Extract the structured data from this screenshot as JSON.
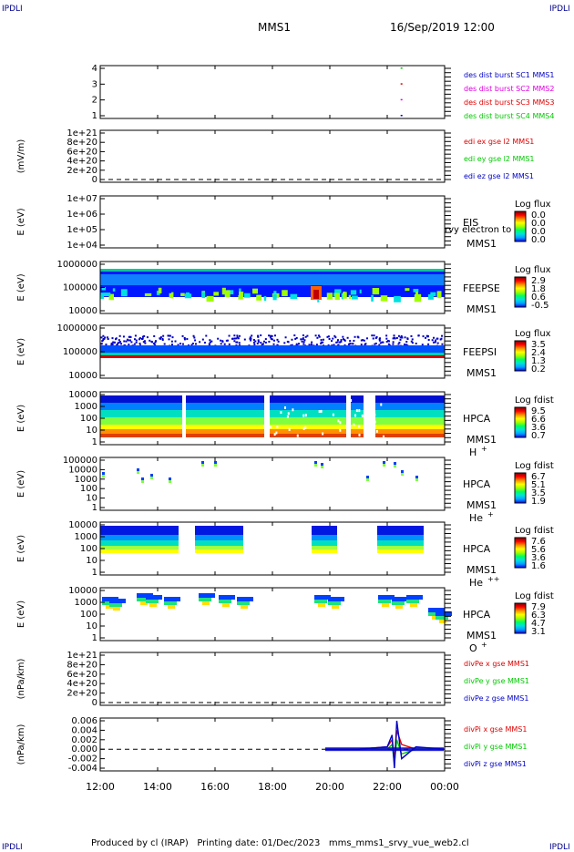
{
  "page": {
    "corner_label": "IPDLI",
    "spacecraft": "MMS1",
    "datetime": "16/Sep/2019 12:00",
    "footer": "Produced by cl (IRAP)   Printing date: 01/Dec/2023   mms_mms1_srvy_vue_web2.cl"
  },
  "time_axis": {
    "ticks": [
      "12:00",
      "14:00",
      "16:00",
      "18:00",
      "20:00",
      "22:00",
      "00:00"
    ]
  },
  "colors": {
    "blue": "#0000c8",
    "magenta": "#e000e0",
    "red": "#e00000",
    "green": "#00c800",
    "rainbow": [
      "#0000ff",
      "#00a0ff",
      "#00e0e0",
      "#00ff60",
      "#a0ff00",
      "#ffff00",
      "#ff9000",
      "#ff0000",
      "#800000"
    ]
  },
  "panels": [
    {
      "id": "des-dist-burst",
      "ylabel": "",
      "yticks": [
        "4",
        "3",
        "2",
        "1"
      ],
      "legend": [
        {
          "text": "des dist burst SC1 MMS1",
          "color": "#0000c8"
        },
        {
          "text": "des dist burst SC2 MMS2",
          "color": "#e000e0"
        },
        {
          "text": "des dist burst SC3 MMS3",
          "color": "#e00000"
        },
        {
          "text": "des dist burst SC4 MMS4",
          "color": "#00c800"
        }
      ]
    },
    {
      "id": "edi-e",
      "ylabel": "(mV/m)",
      "yticks": [
        "1e+21",
        "8e+20",
        "6e+20",
        "4e+20",
        "2e+20",
        "0"
      ],
      "legend": [
        {
          "text": "edi ex gse l2 MMS1",
          "color": "#e00000"
        },
        {
          "text": "edi ey gse l2 MMS1",
          "color": "#00c800"
        },
        {
          "text": "edi ez gse l2 MMS1",
          "color": "#0000c8"
        }
      ]
    },
    {
      "id": "eis",
      "ylabel": "E (eV)",
      "yticks": [
        "1e+07",
        "1e+06",
        "1e+05",
        "1e+04"
      ],
      "instrument": "EIS",
      "species": "",
      "spacecraft": "MMS1",
      "extra": "rvy electron to",
      "cbar_title": "Log flux",
      "cbar_ticks": [
        "0.0",
        "0.0",
        "0.0",
        "0.0"
      ]
    },
    {
      "id": "feepse",
      "ylabel": "E (eV)",
      "yticks": [
        "1000000",
        "100000",
        "10000"
      ],
      "instrument": "FEEPSE",
      "species": "",
      "spacecraft": "MMS1",
      "cbar_title": "Log flux",
      "cbar_ticks": [
        "2.9",
        "1.8",
        "0.6",
        "-0.5"
      ]
    },
    {
      "id": "feepsi",
      "ylabel": "E (eV)",
      "yticks": [
        "1000000",
        "100000",
        "10000"
      ],
      "instrument": "FEEPSI",
      "species": "",
      "spacecraft": "MMS1",
      "cbar_title": "Log flux",
      "cbar_ticks": [
        "3.5",
        "2.4",
        "1.3",
        "0.2"
      ]
    },
    {
      "id": "hpca-h",
      "ylabel": "E (eV)",
      "yticks": [
        "10000",
        "1000",
        "100",
        "10",
        "1"
      ],
      "instrument": "HPCA",
      "spacecraft": "MMS1",
      "species": "H",
      "charge": "+",
      "cbar_title": "Log fdist",
      "cbar_ticks": [
        "9.5",
        "6.6",
        "3.6",
        "0.7"
      ]
    },
    {
      "id": "hpca-he1",
      "ylabel": "E (eV)",
      "yticks": [
        "100000",
        "10000",
        "1000",
        "100",
        "10",
        "1"
      ],
      "instrument": "HPCA",
      "spacecraft": "MMS1",
      "species": "He",
      "charge": "+",
      "cbar_title": "Log fdist",
      "cbar_ticks": [
        "6.7",
        "5.1",
        "3.5",
        "1.9"
      ]
    },
    {
      "id": "hpca-he2",
      "ylabel": "E (eV)",
      "yticks": [
        "10000",
        "1000",
        "100",
        "10",
        "1"
      ],
      "instrument": "HPCA",
      "spacecraft": "MMS1",
      "species": "He",
      "charge": "++",
      "cbar_title": "Log fdist",
      "cbar_ticks": [
        "7.6",
        "5.6",
        "3.6",
        "1.6"
      ]
    },
    {
      "id": "hpca-o",
      "ylabel": "E (eV)",
      "yticks": [
        "10000",
        "1000",
        "100",
        "10",
        "1"
      ],
      "instrument": "HPCA",
      "spacecraft": "MMS1",
      "species": "O",
      "charge": "+",
      "cbar_title": "Log fdist",
      "cbar_ticks": [
        "7.9",
        "6.3",
        "4.7",
        "3.1"
      ]
    },
    {
      "id": "divpe",
      "ylabel": "(nPa/km)",
      "yticks": [
        "1e+21",
        "8e+20",
        "6e+20",
        "4e+20",
        "2e+20",
        "0"
      ],
      "legend": [
        {
          "text": "divPe x gse MMS1",
          "color": "#e00000"
        },
        {
          "text": "divPe y gse MMS1",
          "color": "#00c800"
        },
        {
          "text": "divPe z gse MMS1",
          "color": "#0000c8"
        }
      ]
    },
    {
      "id": "divpi",
      "ylabel": "(nPa/km)",
      "yticks": [
        "0.006",
        "0.004",
        "0.002",
        "0.000",
        "-0.002",
        "-0.004"
      ],
      "legend": [
        {
          "text": "divPi x gse MMS1",
          "color": "#e00000"
        },
        {
          "text": "divPi y gse MMS1",
          "color": "#00c800"
        },
        {
          "text": "divPi z gse MMS1",
          "color": "#0000c8"
        }
      ]
    }
  ],
  "chart_data": [
    {
      "type": "scatter",
      "panel": "des-dist-burst",
      "x_range": [
        "12:00",
        "00:00"
      ],
      "ylim": [
        1,
        4
      ],
      "series": [
        {
          "name": "des dist burst SC1 MMS1",
          "x": [
            "22:28"
          ],
          "values": [
            1
          ]
        },
        {
          "name": "des dist burst SC2 MMS2",
          "x": [
            "22:28"
          ],
          "values": [
            2
          ]
        },
        {
          "name": "des dist burst SC3 MMS3",
          "x": [
            "22:28"
          ],
          "values": [
            3
          ]
        },
        {
          "name": "des dist burst SC4 MMS4",
          "x": [
            "22:28"
          ],
          "values": [
            4
          ]
        }
      ]
    },
    {
      "type": "line",
      "panel": "edi-e",
      "ylim": [
        0,
        1e+21
      ],
      "zero_line": true,
      "series": []
    },
    {
      "type": "heatmap",
      "panel": "eis",
      "ylim": [
        10000.0,
        10000000.0
      ],
      "log_y": true,
      "series": []
    },
    {
      "type": "heatmap",
      "panel": "feepse",
      "ylim": [
        10000.0,
        1000000.0
      ],
      "log_y": true,
      "clim": [
        -0.5,
        2.9
      ]
    },
    {
      "type": "heatmap",
      "panel": "feepsi",
      "ylim": [
        10000.0,
        1000000.0
      ],
      "log_y": true,
      "clim": [
        0.2,
        3.5
      ]
    },
    {
      "type": "heatmap",
      "panel": "hpca-h",
      "ylim": [
        1,
        10000.0
      ],
      "log_y": true,
      "clim": [
        0.7,
        9.5
      ]
    },
    {
      "type": "heatmap",
      "panel": "hpca-he1",
      "ylim": [
        1,
        100000.0
      ],
      "log_y": true,
      "clim": [
        1.9,
        6.7
      ]
    },
    {
      "type": "heatmap",
      "panel": "hpca-he2",
      "ylim": [
        1,
        10000.0
      ],
      "log_y": true,
      "clim": [
        1.6,
        7.6
      ]
    },
    {
      "type": "heatmap",
      "panel": "hpca-o",
      "ylim": [
        1,
        10000.0
      ],
      "log_y": true,
      "clim": [
        3.1,
        7.9
      ]
    },
    {
      "type": "line",
      "panel": "divpe",
      "ylim": [
        0,
        1e+21
      ],
      "zero_line": true,
      "series": []
    },
    {
      "type": "line",
      "panel": "divpi",
      "ylim": [
        -0.005,
        0.006
      ],
      "zero_line": true,
      "x": [
        "19:50",
        "21:00",
        "22:00",
        "22:10",
        "22:15",
        "22:20",
        "22:30",
        "23:00",
        "00:00"
      ],
      "series": [
        {
          "name": "divPi x gse MMS1",
          "values": [
            0,
            0,
            0.0005,
            0.002,
            -0.002,
            0.004,
            0.001,
            0,
            0
          ]
        },
        {
          "name": "divPi y gse MMS1",
          "values": [
            0,
            0,
            0,
            0.001,
            -0.003,
            0.002,
            -0.001,
            0,
            0
          ]
        },
        {
          "name": "divPi z gse MMS1",
          "values": [
            0,
            0,
            0.0005,
            0.003,
            -0.004,
            0.006,
            -0.002,
            0.0005,
            0
          ]
        }
      ]
    }
  ]
}
